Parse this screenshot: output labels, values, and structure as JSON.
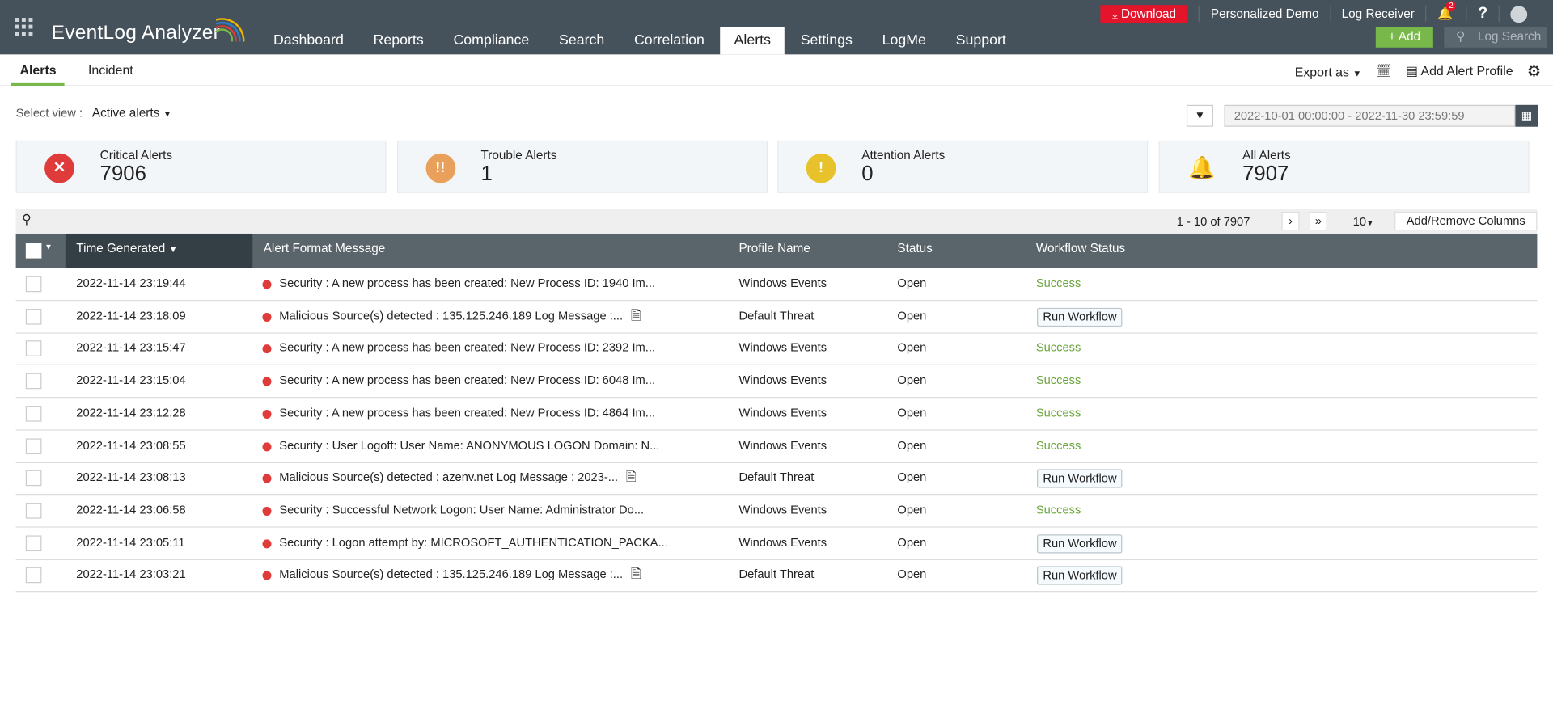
{
  "header": {
    "app_title": "EventLog Analyzer",
    "nav": [
      "Dashboard",
      "Reports",
      "Compliance",
      "Search",
      "Correlation",
      "Alerts",
      "Settings",
      "LogMe",
      "Support"
    ],
    "active_nav": "Alerts",
    "download": "Download",
    "personalized_demo": "Personalized Demo",
    "log_receiver": "Log Receiver",
    "notification_count": "2",
    "help": "?",
    "add": "Add",
    "log_search_placeholder": "Log Search"
  },
  "subnav": {
    "tabs": [
      "Alerts",
      "Incident"
    ],
    "export_as": "Export as",
    "add_alert_profile": "Add Alert Profile"
  },
  "filters": {
    "select_view_label": "Select view :",
    "select_view_value": "Active alerts",
    "date_range": "2022-10-01 00:00:00 - 2022-11-30 23:59:59"
  },
  "cards": [
    {
      "label": "Critical Alerts",
      "value": "7906",
      "color": "#e03b3b",
      "icon": "close-icon"
    },
    {
      "label": "Trouble Alerts",
      "value": "1",
      "color": "#e8a05a",
      "icon": "double-exclamation-icon"
    },
    {
      "label": "Attention Alerts",
      "value": "0",
      "color": "#e8c22a",
      "icon": "exclamation-icon"
    },
    {
      "label": "All Alerts",
      "value": "7907",
      "color": "#2f7fc8",
      "icon": "bell-icon"
    }
  ],
  "table": {
    "pagination": "1 - 10 of 7907",
    "page_size": "10",
    "add_remove_columns": "Add/Remove Columns",
    "columns": [
      "Time Generated",
      "Alert Format Message",
      "Profile Name",
      "Status",
      "Workflow Status"
    ],
    "rows": [
      {
        "time": "2022-11-14 23:19:44",
        "message": "Security : A new process has been created: New Process ID: 1940 Im...",
        "profile": "Windows Events",
        "status": "Open",
        "workflow": "Success",
        "report_icon": false
      },
      {
        "time": "2022-11-14 23:18:09",
        "message": "Malicious Source(s) detected : 135.125.246.189 Log Message :...",
        "profile": "Default Threat",
        "status": "Open",
        "workflow": "Run Workflow",
        "report_icon": true
      },
      {
        "time": "2022-11-14 23:15:47",
        "message": "Security : A new process has been created: New Process ID: 2392 Im...",
        "profile": "Windows Events",
        "status": "Open",
        "workflow": "Success",
        "report_icon": false
      },
      {
        "time": "2022-11-14 23:15:04",
        "message": "Security : A new process has been created: New Process ID: 6048 Im...",
        "profile": "Windows Events",
        "status": "Open",
        "workflow": "Success",
        "report_icon": false
      },
      {
        "time": "2022-11-14 23:12:28",
        "message": "Security : A new process has been created: New Process ID: 4864 Im...",
        "profile": "Windows Events",
        "status": "Open",
        "workflow": "Success",
        "report_icon": false
      },
      {
        "time": "2022-11-14 23:08:55",
        "message": "Security : User Logoff: User Name: ANONYMOUS LOGON Domain: N...",
        "profile": "Windows Events",
        "status": "Open",
        "workflow": "Success",
        "report_icon": false
      },
      {
        "time": "2022-11-14 23:08:13",
        "message": "Malicious Source(s) detected : azenv.net Log Message : 2023-...",
        "profile": "Default Threat",
        "status": "Open",
        "workflow": "Run Workflow",
        "report_icon": true
      },
      {
        "time": "2022-11-14 23:06:58",
        "message": "Security : Successful Network Logon: User Name: Administrator Do...",
        "profile": "Windows Events",
        "status": "Open",
        "workflow": "Success",
        "report_icon": false
      },
      {
        "time": "2022-11-14 23:05:11",
        "message": "Security : Logon attempt by: MICROSOFT_AUTHENTICATION_PACKA...",
        "profile": "Windows Events",
        "status": "Open",
        "workflow": "Run Workflow",
        "report_icon": false
      },
      {
        "time": "2022-11-14 23:03:21",
        "message": "Malicious Source(s) detected : 135.125.246.189 Log Message :...",
        "profile": "Default Threat",
        "status": "Open",
        "workflow": "Run Workflow",
        "report_icon": true
      }
    ]
  }
}
